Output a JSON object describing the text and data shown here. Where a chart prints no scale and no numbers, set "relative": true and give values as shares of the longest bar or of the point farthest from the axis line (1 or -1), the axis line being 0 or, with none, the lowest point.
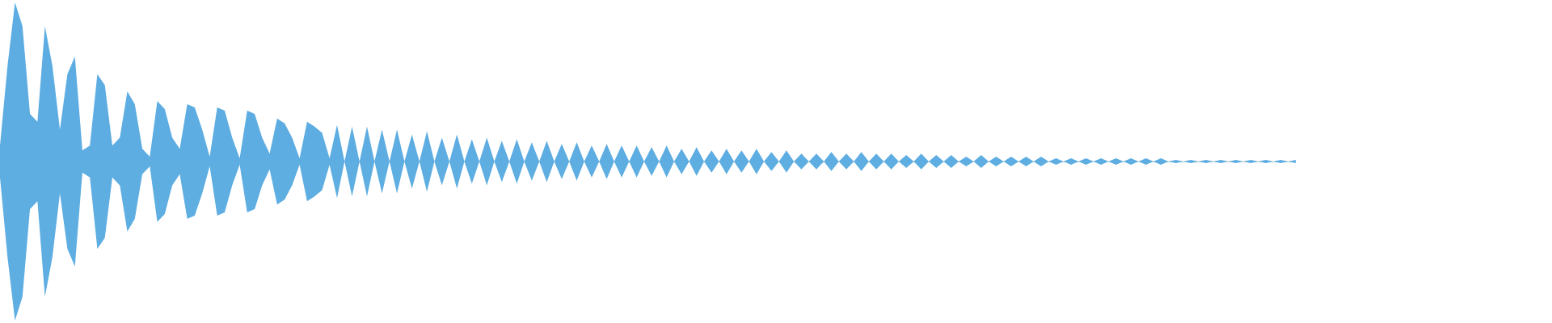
{
  "chart_data": {
    "type": "area",
    "relative": true,
    "categories": [
      null,
      null,
      null,
      null,
      null,
      null,
      null,
      null,
      null,
      null,
      null,
      null,
      null,
      null,
      null,
      null,
      null,
      null,
      null,
      null,
      null,
      null,
      null,
      null,
      null,
      null,
      null,
      null,
      null,
      null,
      null,
      null,
      null,
      null,
      null,
      null,
      null,
      null,
      null,
      null,
      null,
      null,
      null,
      null,
      null,
      null,
      null,
      null,
      null,
      null,
      null,
      null,
      null,
      null,
      null,
      null,
      null,
      null,
      null,
      null,
      null,
      null,
      null,
      null,
      null,
      null,
      null,
      null,
      null,
      null,
      null,
      null,
      null,
      null,
      null,
      null,
      null,
      null,
      null,
      null,
      null,
      null,
      null,
      null,
      null,
      null,
      null,
      null,
      null,
      null,
      null,
      null,
      null,
      null,
      null,
      null,
      null,
      null,
      null,
      null,
      null,
      null,
      null,
      null,
      null,
      null,
      null,
      null,
      null,
      null,
      null,
      null,
      null,
      null,
      null,
      null,
      null,
      null,
      null,
      null,
      null,
      null,
      null,
      null,
      null,
      null,
      null,
      null,
      null,
      null,
      null,
      null,
      null,
      null,
      null,
      null,
      null,
      null,
      null,
      null,
      null,
      null,
      null,
      null,
      null,
      null,
      null,
      null,
      null,
      null,
      null,
      null,
      null,
      null,
      null,
      null,
      null,
      null,
      null,
      null,
      null,
      null,
      null,
      null,
      null,
      null,
      null,
      null,
      null,
      null,
      null,
      null,
      null,
      null
    ],
    "series": [
      {
        "color": "#5dade2",
        "values": [
          0.1,
          0.6,
          1,
          0.85,
          0.3,
          0.25,
          0.85,
          0.6,
          0.2,
          0.55,
          0.66,
          0.07,
          0.1,
          0.55,
          0.48,
          0.1,
          0.15,
          0.44,
          0.36,
          0.08,
          0.03,
          0.38,
          0.33,
          0.15,
          0.08,
          0.36,
          0.34,
          0.2,
          0.03,
          0.34,
          0.32,
          0.15,
          0.02,
          0.32,
          0.3,
          0.15,
          0.05,
          0.27,
          0.24,
          0.15,
          0.02,
          0.25,
          0.22,
          0.18,
          0.02,
          0.23,
          0,
          0.22,
          0,
          0.22,
          0,
          0.2,
          0,
          0.2,
          0,
          0.17,
          0,
          0.19,
          0,
          0.15,
          0,
          0.17,
          0,
          0.14,
          0,
          0.15,
          0,
          0.13,
          0,
          0.14,
          0,
          0.12,
          0,
          0.13,
          0,
          0.11,
          0,
          0.12,
          0,
          0.1,
          0,
          0.11,
          0,
          0.1,
          0,
          0.1,
          0,
          0.09,
          0,
          0.1,
          0,
          0.08,
          0,
          0.09,
          0,
          0.07,
          0,
          0.08,
          0,
          0.07,
          0,
          0.08,
          0,
          0.06,
          0,
          0.07,
          0,
          0.05,
          0,
          0.05,
          0,
          0.06,
          0,
          0.05,
          0,
          0.06,
          0,
          0.05,
          0,
          0.05,
          0,
          0.04,
          0,
          0.05,
          0,
          0.04,
          0,
          0.04,
          0,
          0.03,
          0,
          0.04,
          0,
          0.03,
          0,
          0.03,
          0,
          0.03,
          0,
          0.03,
          0,
          0.02,
          0,
          0.02,
          0,
          0.02,
          0,
          0.02,
          0,
          0.02,
          0,
          0.02,
          0,
          0.02,
          0,
          0.02,
          0,
          0.01,
          0,
          0.01,
          0,
          0.01,
          0,
          0.01,
          0,
          0.01,
          0,
          0.01,
          0,
          0.01,
          0,
          0.01,
          0,
          0.01
        ]
      },
      {
        "color": "#5eaee2",
        "values": [
          -0.1,
          -0.6,
          -1,
          -0.85,
          -0.3,
          -0.25,
          -0.85,
          -0.6,
          -0.2,
          -0.55,
          -0.66,
          -0.07,
          -0.1,
          -0.55,
          -0.48,
          -0.1,
          -0.15,
          -0.44,
          -0.36,
          -0.08,
          -0.03,
          -0.38,
          -0.33,
          -0.15,
          -0.08,
          -0.36,
          -0.34,
          -0.2,
          -0.03,
          -0.34,
          -0.32,
          -0.15,
          -0.02,
          -0.32,
          -0.3,
          -0.15,
          -0.05,
          -0.27,
          -0.24,
          -0.15,
          -0.02,
          -0.25,
          -0.22,
          -0.18,
          -0.02,
          -0.23,
          0,
          -0.22,
          0,
          -0.22,
          0,
          -0.2,
          0,
          -0.2,
          0,
          -0.17,
          0,
          -0.19,
          0,
          -0.15,
          0,
          -0.17,
          0,
          -0.14,
          0,
          -0.15,
          0,
          -0.13,
          0,
          -0.14,
          0,
          -0.12,
          0,
          -0.13,
          0,
          -0.11,
          0,
          -0.12,
          0,
          -0.1,
          0,
          -0.11,
          0,
          -0.1,
          0,
          -0.1,
          0,
          -0.09,
          0,
          -0.1,
          0,
          -0.08,
          0,
          -0.09,
          0,
          -0.07,
          0,
          -0.08,
          0,
          -0.07,
          0,
          -0.08,
          0,
          -0.06,
          0,
          -0.07,
          0,
          -0.05,
          0,
          -0.05,
          0,
          -0.06,
          0,
          -0.05,
          0,
          -0.06,
          0,
          -0.05,
          0,
          -0.05,
          0,
          -0.04,
          0,
          -0.05,
          0,
          -0.04,
          0,
          -0.04,
          0,
          -0.03,
          0,
          -0.04,
          0,
          -0.03,
          0,
          -0.03,
          0,
          -0.03,
          0,
          -0.03,
          0,
          -0.02,
          0,
          -0.02,
          0,
          -0.02,
          0,
          -0.02,
          0,
          -0.02,
          0,
          -0.02,
          0,
          -0.02,
          0,
          -0.02,
          0,
          -0.01,
          0,
          -0.01,
          0,
          -0.01,
          0,
          -0.01,
          0,
          -0.01,
          0,
          -0.01,
          0,
          -0.01,
          0,
          -0.01,
          0,
          -0.01
        ]
      }
    ]
  }
}
